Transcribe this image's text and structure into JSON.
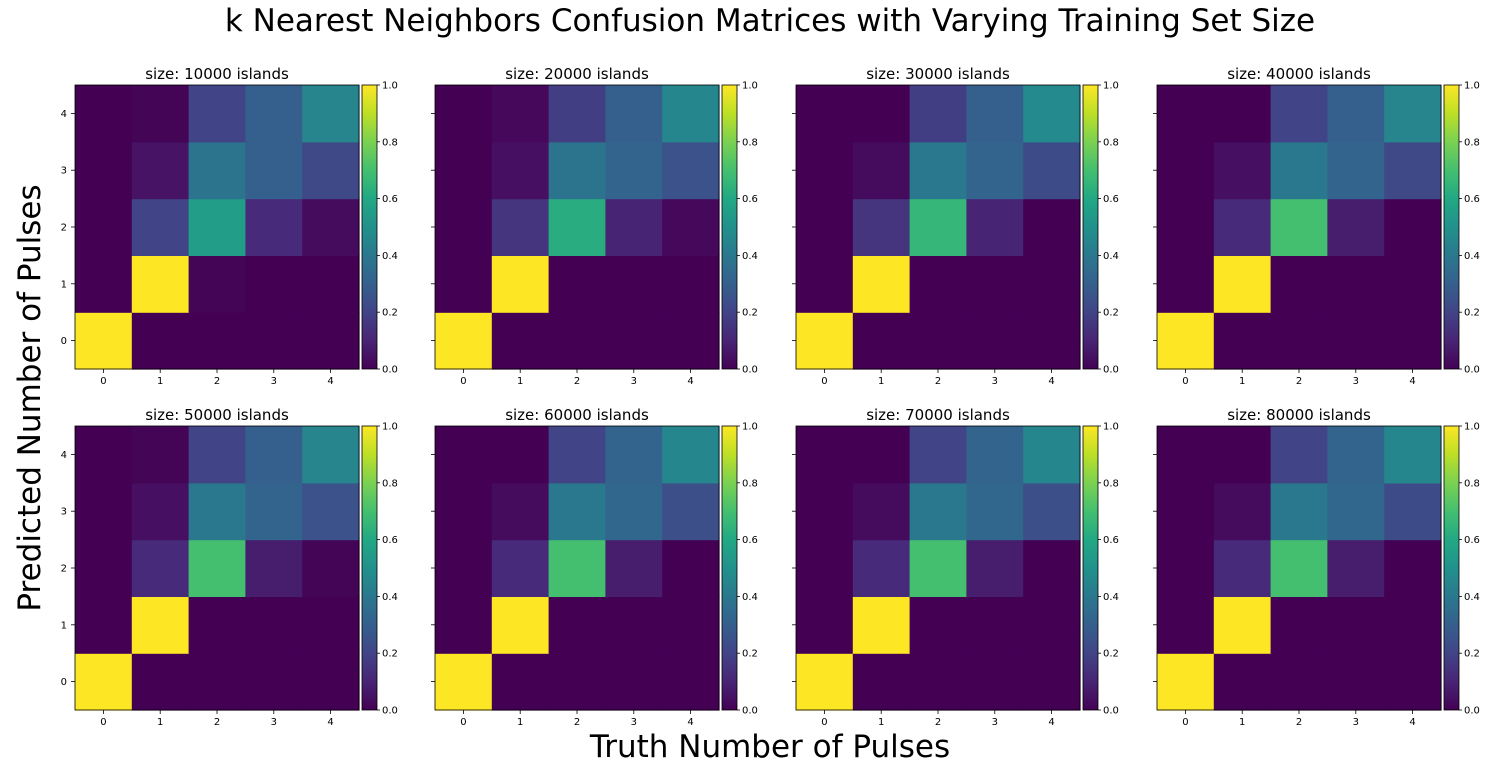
{
  "figure": {
    "suptitle": "k Nearest Neighbors Confusion Matrices with Varying Training Set Size",
    "xlabel": "Truth Number of Pulses",
    "ylabel": "Predicted Number of Pulses"
  },
  "chart_data": {
    "type": "heatmap",
    "colormap": "viridis",
    "x_categories": [
      "0",
      "1",
      "2",
      "3",
      "4"
    ],
    "y_categories": [
      "0",
      "1",
      "2",
      "3",
      "4"
    ],
    "y_origin": "bottom",
    "clim": [
      0,
      1
    ],
    "colorbar_ticks": [
      "0.0",
      "0.2",
      "0.4",
      "0.6",
      "0.8",
      "1.0"
    ],
    "panels": [
      {
        "title": "size: 10000 islands",
        "z_rows_pred_0_to_4": [
          [
            1,
            0,
            0,
            0,
            0
          ],
          [
            0,
            1,
            0.01,
            0,
            0
          ],
          [
            0,
            0.2,
            0.55,
            0.12,
            0.03
          ],
          [
            0,
            0.05,
            0.38,
            0.3,
            0.22
          ],
          [
            0,
            0.01,
            0.2,
            0.3,
            0.45
          ]
        ]
      },
      {
        "title": "size: 20000 islands",
        "z_rows_pred_0_to_4": [
          [
            1,
            0,
            0,
            0,
            0
          ],
          [
            0,
            1,
            0,
            0,
            0
          ],
          [
            0,
            0.15,
            0.62,
            0.1,
            0.02
          ],
          [
            0,
            0.04,
            0.38,
            0.32,
            0.25
          ],
          [
            0,
            0.02,
            0.18,
            0.3,
            0.46
          ]
        ]
      },
      {
        "title": "size: 30000 islands",
        "z_rows_pred_0_to_4": [
          [
            1,
            0,
            0,
            0,
            0
          ],
          [
            0,
            1,
            0,
            0,
            0
          ],
          [
            0,
            0.15,
            0.66,
            0.1,
            0
          ],
          [
            0,
            0.03,
            0.4,
            0.32,
            0.23
          ],
          [
            0,
            0,
            0.18,
            0.3,
            0.47
          ]
        ]
      },
      {
        "title": "size: 40000 islands",
        "z_rows_pred_0_to_4": [
          [
            1,
            0,
            0,
            0,
            0
          ],
          [
            0,
            1,
            0,
            0,
            0
          ],
          [
            0,
            0.12,
            0.7,
            0.08,
            0
          ],
          [
            0,
            0.04,
            0.4,
            0.32,
            0.22
          ],
          [
            0,
            0,
            0.2,
            0.3,
            0.45
          ]
        ]
      },
      {
        "title": "size: 50000 islands",
        "z_rows_pred_0_to_4": [
          [
            1,
            0,
            0,
            0,
            0
          ],
          [
            0,
            1,
            0,
            0,
            0
          ],
          [
            0,
            0.12,
            0.7,
            0.08,
            0.01
          ],
          [
            0,
            0.04,
            0.4,
            0.32,
            0.25
          ],
          [
            0,
            0.01,
            0.2,
            0.3,
            0.45
          ]
        ]
      },
      {
        "title": "size: 60000 islands",
        "z_rows_pred_0_to_4": [
          [
            1,
            0,
            0,
            0,
            0
          ],
          [
            0,
            1,
            0,
            0,
            0
          ],
          [
            0,
            0.12,
            0.7,
            0.08,
            0
          ],
          [
            0,
            0.03,
            0.4,
            0.33,
            0.24
          ],
          [
            0,
            0,
            0.2,
            0.32,
            0.46
          ]
        ]
      },
      {
        "title": "size: 70000 islands",
        "z_rows_pred_0_to_4": [
          [
            1,
            0,
            0,
            0,
            0
          ],
          [
            0,
            1,
            0,
            0,
            0
          ],
          [
            0,
            0.12,
            0.7,
            0.08,
            0
          ],
          [
            0,
            0.03,
            0.4,
            0.33,
            0.24
          ],
          [
            0,
            0,
            0.2,
            0.32,
            0.46
          ]
        ]
      },
      {
        "title": "size: 80000 islands",
        "z_rows_pred_0_to_4": [
          [
            1,
            0,
            0,
            0,
            0
          ],
          [
            0,
            1,
            0,
            0,
            0
          ],
          [
            0,
            0.12,
            0.7,
            0.08,
            0
          ],
          [
            0,
            0.03,
            0.4,
            0.33,
            0.23
          ],
          [
            0,
            0,
            0.2,
            0.32,
            0.46
          ]
        ]
      }
    ]
  }
}
